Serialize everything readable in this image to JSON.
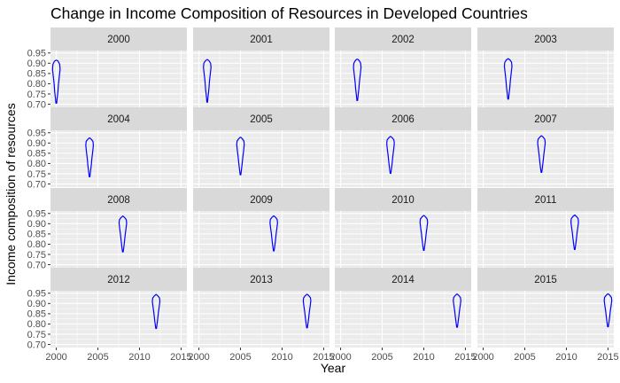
{
  "chart_data": {
    "type": "violin-facet",
    "title": "Change in Income Composition of Resources in Developed Countries",
    "xlabel": "Year",
    "ylabel": "Income composition of resources",
    "x_ticks": [
      2000,
      2005,
      2010,
      2015
    ],
    "y_ticks": [
      0.7,
      0.75,
      0.8,
      0.85,
      0.9,
      0.95
    ],
    "y_tick_labels": [
      "0.70",
      "0.75",
      "0.80",
      "0.85",
      "0.90",
      "0.95"
    ],
    "xlim": [
      1999.3,
      2015.7
    ],
    "ylim": [
      0.685,
      0.962
    ],
    "facet_rows": 4,
    "facet_cols": 4,
    "grid": "on",
    "violin_color": "#0000FF",
    "panel_background": "#EBEBEB",
    "strip_background": "#D9D9D9",
    "panels": [
      {
        "year": 2000,
        "label": "2000",
        "min": 0.705,
        "max": 0.915,
        "profile": [
          [
            0.705,
            0.09
          ],
          [
            0.73,
            0.22
          ],
          [
            0.76,
            0.4
          ],
          [
            0.8,
            0.55
          ],
          [
            0.84,
            0.78
          ],
          [
            0.87,
            0.95
          ],
          [
            0.895,
            0.85
          ],
          [
            0.91,
            0.45
          ],
          [
            0.915,
            0.05
          ]
        ]
      },
      {
        "year": 2001,
        "label": "2001",
        "min": 0.71,
        "max": 0.918,
        "profile": [
          [
            0.71,
            0.08
          ],
          [
            0.74,
            0.22
          ],
          [
            0.77,
            0.4
          ],
          [
            0.81,
            0.55
          ],
          [
            0.85,
            0.78
          ],
          [
            0.88,
            0.95
          ],
          [
            0.9,
            0.85
          ],
          [
            0.912,
            0.45
          ],
          [
            0.918,
            0.05
          ]
        ]
      },
      {
        "year": 2002,
        "label": "2002",
        "min": 0.718,
        "max": 0.92,
        "profile": [
          [
            0.718,
            0.08
          ],
          [
            0.745,
            0.22
          ],
          [
            0.775,
            0.4
          ],
          [
            0.81,
            0.55
          ],
          [
            0.85,
            0.78
          ],
          [
            0.88,
            0.95
          ],
          [
            0.9,
            0.85
          ],
          [
            0.914,
            0.45
          ],
          [
            0.92,
            0.05
          ]
        ]
      },
      {
        "year": 2003,
        "label": "2003",
        "min": 0.725,
        "max": 0.922,
        "profile": [
          [
            0.725,
            0.08
          ],
          [
            0.75,
            0.22
          ],
          [
            0.78,
            0.4
          ],
          [
            0.815,
            0.55
          ],
          [
            0.855,
            0.78
          ],
          [
            0.885,
            0.95
          ],
          [
            0.905,
            0.85
          ],
          [
            0.916,
            0.45
          ],
          [
            0.922,
            0.05
          ]
        ]
      },
      {
        "year": 2004,
        "label": "2004",
        "min": 0.735,
        "max": 0.925,
        "profile": [
          [
            0.735,
            0.08
          ],
          [
            0.76,
            0.22
          ],
          [
            0.79,
            0.42
          ],
          [
            0.825,
            0.58
          ],
          [
            0.86,
            0.8
          ],
          [
            0.89,
            0.95
          ],
          [
            0.908,
            0.85
          ],
          [
            0.918,
            0.45
          ],
          [
            0.925,
            0.05
          ]
        ]
      },
      {
        "year": 2005,
        "label": "2005",
        "min": 0.745,
        "max": 0.928,
        "profile": [
          [
            0.745,
            0.08
          ],
          [
            0.77,
            0.24
          ],
          [
            0.8,
            0.42
          ],
          [
            0.83,
            0.58
          ],
          [
            0.865,
            0.8
          ],
          [
            0.893,
            0.95
          ],
          [
            0.91,
            0.85
          ],
          [
            0.921,
            0.45
          ],
          [
            0.928,
            0.05
          ]
        ]
      },
      {
        "year": 2006,
        "label": "2006",
        "min": 0.752,
        "max": 0.932,
        "profile": [
          [
            0.752,
            0.08
          ],
          [
            0.775,
            0.24
          ],
          [
            0.805,
            0.42
          ],
          [
            0.835,
            0.58
          ],
          [
            0.87,
            0.8
          ],
          [
            0.898,
            0.95
          ],
          [
            0.915,
            0.85
          ],
          [
            0.925,
            0.45
          ],
          [
            0.932,
            0.05
          ]
        ]
      },
      {
        "year": 2007,
        "label": "2007",
        "min": 0.757,
        "max": 0.935,
        "profile": [
          [
            0.757,
            0.08
          ],
          [
            0.78,
            0.24
          ],
          [
            0.81,
            0.42
          ],
          [
            0.84,
            0.58
          ],
          [
            0.875,
            0.8
          ],
          [
            0.9,
            0.95
          ],
          [
            0.918,
            0.85
          ],
          [
            0.928,
            0.45
          ],
          [
            0.935,
            0.05
          ]
        ]
      },
      {
        "year": 2008,
        "label": "2008",
        "min": 0.762,
        "max": 0.937,
        "profile": [
          [
            0.762,
            0.08
          ],
          [
            0.785,
            0.24
          ],
          [
            0.815,
            0.42
          ],
          [
            0.845,
            0.58
          ],
          [
            0.878,
            0.8
          ],
          [
            0.903,
            0.95
          ],
          [
            0.92,
            0.85
          ],
          [
            0.93,
            0.45
          ],
          [
            0.937,
            0.05
          ]
        ]
      },
      {
        "year": 2009,
        "label": "2009",
        "min": 0.767,
        "max": 0.938,
        "profile": [
          [
            0.767,
            0.08
          ],
          [
            0.79,
            0.24
          ],
          [
            0.818,
            0.42
          ],
          [
            0.848,
            0.58
          ],
          [
            0.88,
            0.8
          ],
          [
            0.905,
            0.95
          ],
          [
            0.921,
            0.85
          ],
          [
            0.931,
            0.45
          ],
          [
            0.938,
            0.05
          ]
        ]
      },
      {
        "year": 2010,
        "label": "2010",
        "min": 0.77,
        "max": 0.94,
        "profile": [
          [
            0.77,
            0.08
          ],
          [
            0.793,
            0.24
          ],
          [
            0.82,
            0.42
          ],
          [
            0.85,
            0.58
          ],
          [
            0.882,
            0.8
          ],
          [
            0.907,
            0.95
          ],
          [
            0.923,
            0.85
          ],
          [
            0.933,
            0.45
          ],
          [
            0.94,
            0.05
          ]
        ]
      },
      {
        "year": 2011,
        "label": "2011",
        "min": 0.774,
        "max": 0.942,
        "profile": [
          [
            0.774,
            0.08
          ],
          [
            0.797,
            0.24
          ],
          [
            0.824,
            0.42
          ],
          [
            0.854,
            0.58
          ],
          [
            0.885,
            0.8
          ],
          [
            0.909,
            0.95
          ],
          [
            0.925,
            0.85
          ],
          [
            0.935,
            0.45
          ],
          [
            0.942,
            0.05
          ]
        ]
      },
      {
        "year": 2012,
        "label": "2012",
        "min": 0.778,
        "max": 0.944,
        "profile": [
          [
            0.778,
            0.08
          ],
          [
            0.8,
            0.24
          ],
          [
            0.828,
            0.42
          ],
          [
            0.857,
            0.58
          ],
          [
            0.887,
            0.8
          ],
          [
            0.911,
            0.95
          ],
          [
            0.927,
            0.85
          ],
          [
            0.937,
            0.45
          ],
          [
            0.944,
            0.05
          ]
        ]
      },
      {
        "year": 2013,
        "label": "2013",
        "min": 0.781,
        "max": 0.945,
        "profile": [
          [
            0.781,
            0.08
          ],
          [
            0.803,
            0.24
          ],
          [
            0.83,
            0.42
          ],
          [
            0.859,
            0.58
          ],
          [
            0.889,
            0.8
          ],
          [
            0.913,
            0.95
          ],
          [
            0.928,
            0.85
          ],
          [
            0.938,
            0.45
          ],
          [
            0.945,
            0.05
          ]
        ]
      },
      {
        "year": 2014,
        "label": "2014",
        "min": 0.784,
        "max": 0.946,
        "profile": [
          [
            0.784,
            0.08
          ],
          [
            0.806,
            0.24
          ],
          [
            0.833,
            0.42
          ],
          [
            0.861,
            0.58
          ],
          [
            0.891,
            0.8
          ],
          [
            0.914,
            0.95
          ],
          [
            0.929,
            0.85
          ],
          [
            0.939,
            0.45
          ],
          [
            0.946,
            0.05
          ]
        ]
      },
      {
        "year": 2015,
        "label": "2015",
        "min": 0.786,
        "max": 0.947,
        "profile": [
          [
            0.786,
            0.08
          ],
          [
            0.808,
            0.24
          ],
          [
            0.835,
            0.42
          ],
          [
            0.863,
            0.58
          ],
          [
            0.892,
            0.8
          ],
          [
            0.915,
            0.95
          ],
          [
            0.93,
            0.85
          ],
          [
            0.94,
            0.45
          ],
          [
            0.947,
            0.05
          ]
        ]
      }
    ]
  }
}
